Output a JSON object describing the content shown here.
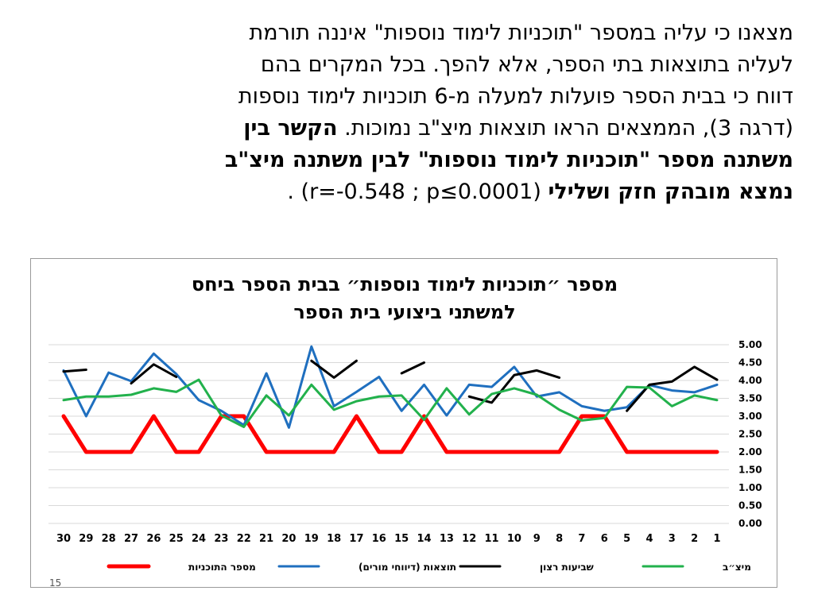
{
  "paragraph": {
    "line1": "מצאנו כי עליה במספר \"תוכניות לימוד נוספות\" איננה תורמת",
    "line2": "לעליה בתוצאות בתי הספר, אלא להפך. בכל המקרים בהם",
    "line3": "דווח כי בבית הספר פועלות למעלה מ-6 תוכניות לימוד נוספות",
    "line4_normal": "(דרגה 3), הממצאים הראו תוצאות מיצ\"ב נמוכות. ",
    "line4_bold": "הקשר בין",
    "line5_bold": "משתנה מספר \"תוכניות לימוד נוספות\" לבין משתנה מיצ\"ב",
    "line6_bold": "נמצא מובהק חזק ושלילי",
    "line6_stats": " (r=-0.548 ; p≤0.0001) ."
  },
  "page_number": "15",
  "chart_data": {
    "type": "line",
    "title_line1": "מספר ״תוכניות לימוד נוספות״ בבית הספר ביחס",
    "title_line2": "למשתני ביצועי בית הספר",
    "categories": [
      "1",
      "2",
      "3",
      "4",
      "5",
      "6",
      "7",
      "8",
      "9",
      "10",
      "11",
      "12",
      "13",
      "14",
      "15",
      "16",
      "17",
      "18",
      "19",
      "20",
      "21",
      "22",
      "23",
      "24",
      "25",
      "26",
      "27",
      "28",
      "29",
      "30"
    ],
    "x_order": "right-to-left",
    "ylim": [
      0,
      5
    ],
    "yticks": [
      "0.00",
      "0.50",
      "1.00",
      "1.50",
      "2.00",
      "2.50",
      "3.00",
      "3.50",
      "4.00",
      "4.50",
      "5.00"
    ],
    "y_axis_side": "right",
    "grid": true,
    "legend_position": "bottom",
    "series": [
      {
        "name": "מספר התוכניות",
        "color": "#ff0000",
        "values": [
          2,
          2,
          2,
          2,
          2,
          3,
          3,
          2,
          2,
          2,
          2,
          2,
          2,
          3,
          2,
          2,
          3,
          2,
          2,
          2,
          2,
          3,
          3,
          2,
          2,
          3,
          2,
          2,
          2,
          3
        ]
      },
      {
        "name": "תוצאות (דיווחי מורים)",
        "color": "#1f6fbf",
        "values": [
          3.88,
          3.67,
          3.72,
          3.87,
          3.25,
          3.15,
          3.28,
          3.67,
          3.55,
          4.38,
          3.82,
          3.88,
          3.02,
          3.88,
          3.15,
          4.1,
          3.68,
          3.28,
          4.95,
          2.68,
          4.2,
          2.75,
          3.15,
          3.45,
          4.18,
          4.75,
          3.98,
          4.22,
          3.0,
          4.28
        ]
      },
      {
        "name": "שביעות רצון",
        "color": "#000000",
        "values": [
          4.02,
          4.38,
          3.97,
          3.88,
          3.15,
          null,
          null,
          4.08,
          4.28,
          4.15,
          3.38,
          3.55,
          null,
          4.5,
          4.2,
          null,
          4.55,
          4.08,
          4.55,
          null,
          null,
          null,
          null,
          null,
          4.1,
          4.45,
          3.92,
          null,
          4.3,
          4.25
        ]
      },
      {
        "name": "מיצ״ב",
        "color": "#22b14c",
        "values": [
          3.45,
          3.58,
          3.28,
          3.8,
          3.82,
          2.95,
          2.88,
          3.18,
          3.6,
          3.78,
          3.62,
          3.05,
          3.78,
          2.9,
          3.58,
          3.55,
          3.42,
          3.18,
          3.88,
          3.02,
          3.58,
          2.7,
          3.02,
          4.02,
          3.68,
          3.78,
          3.6,
          3.55,
          3.55,
          3.45
        ]
      }
    ]
  }
}
